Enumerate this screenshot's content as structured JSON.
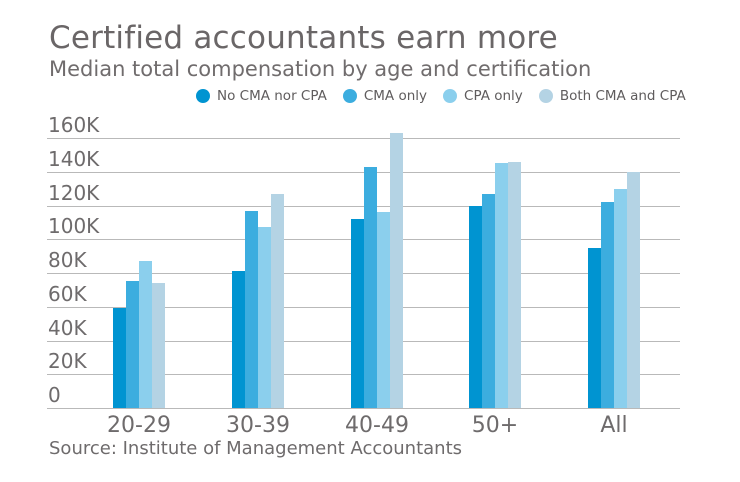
{
  "chart_data": {
    "type": "bar",
    "title": "Certified accountants earn more",
    "subtitle": "Median total compensation by age and certification",
    "source": "Source: Institute of Management Accountants",
    "xlabel": "",
    "ylabel": "",
    "unit": "USD",
    "categories": [
      "20-29",
      "30-39",
      "40-49",
      "50+",
      "All"
    ],
    "series": [
      {
        "name": "No CMA nor CPA",
        "color": "#0094d1",
        "values": [
          59000,
          81000,
          112000,
          120000,
          95000
        ]
      },
      {
        "name": "CMA only",
        "color": "#3caddf",
        "values": [
          75000,
          117000,
          143000,
          127000,
          122000
        ]
      },
      {
        "name": "CPA only",
        "color": "#8bcfed",
        "values": [
          87000,
          107000,
          116000,
          145000,
          130000
        ]
      },
      {
        "name": "Both CMA and CPA",
        "color": "#b4d3e4",
        "values": [
          74000,
          127000,
          163000,
          146000,
          140000
        ]
      }
    ],
    "y_axis": {
      "min": 0,
      "max": 160000,
      "tick_step": 20000,
      "tick_labels": [
        "0",
        "20K",
        "40K",
        "60K",
        "80K",
        "100K",
        "120K",
        "140K",
        "160K"
      ]
    },
    "grid": true,
    "grid_color": "#b9b9b9",
    "legend_position": "top"
  }
}
